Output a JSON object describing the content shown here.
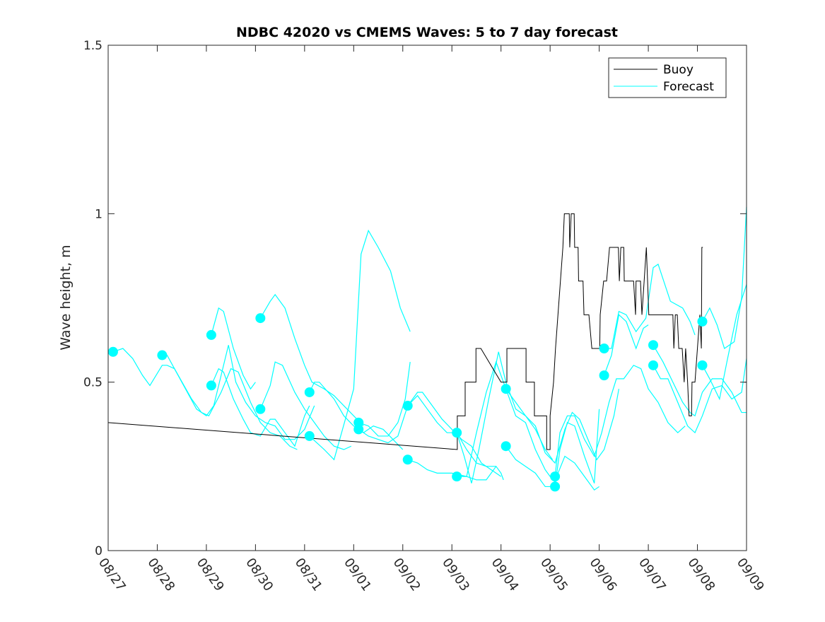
{
  "chart_data": {
    "type": "line",
    "title": "NDBC 42020 vs CMEMS Waves: 5 to 7 day forecast",
    "xlabel": "",
    "ylabel": "Wave height, m",
    "xlim": [
      0,
      13
    ],
    "ylim": [
      0,
      1.5
    ],
    "x_unit": "days since 08/27",
    "x_tick_labels": [
      "08/27",
      "08/28",
      "08/29",
      "08/30",
      "08/31",
      "09/01",
      "09/02",
      "09/03",
      "09/04",
      "09/05",
      "09/06",
      "09/07",
      "09/08",
      "09/09"
    ],
    "y_ticks": [
      0,
      0.5,
      1,
      1.5
    ],
    "y_tick_labels": [
      "0",
      "0.5",
      "1",
      "1.5"
    ],
    "grid": false,
    "legend": {
      "placement": "top-right",
      "entries": [
        "Buoy",
        "Forecast"
      ]
    },
    "colors": {
      "buoy": "#000000",
      "forecast": "#00ffff"
    },
    "buoy": [
      [
        [
          0,
          0.38
        ],
        [
          7.11,
          0.3
        ],
        [
          7.11,
          0.4
        ],
        [
          7.27,
          0.4
        ],
        [
          7.27,
          0.5
        ],
        [
          7.49,
          0.5
        ],
        [
          7.49,
          0.6
        ],
        [
          7.59,
          0.6
        ],
        [
          8.0,
          0.5
        ],
        [
          8.12,
          0.5
        ],
        [
          8.12,
          0.6
        ],
        [
          8.51,
          0.6
        ],
        [
          8.51,
          0.5
        ],
        [
          8.68,
          0.5
        ],
        [
          8.68,
          0.4
        ],
        [
          8.93,
          0.4
        ],
        [
          8.93,
          0.3
        ],
        [
          9.0,
          0.3
        ],
        [
          9.0,
          0.4
        ],
        [
          9.07,
          0.5
        ],
        [
          9.11,
          0.6
        ],
        [
          9.16,
          0.7
        ],
        [
          9.21,
          0.8
        ],
        [
          9.26,
          0.9
        ],
        [
          9.29,
          1.0
        ],
        [
          9.39,
          1.0
        ],
        [
          9.4,
          0.9
        ],
        [
          9.43,
          1.0
        ],
        [
          9.49,
          1.0
        ],
        [
          9.5,
          0.9
        ],
        [
          9.57,
          0.9
        ],
        [
          9.58,
          0.8
        ],
        [
          9.67,
          0.8
        ],
        [
          9.69,
          0.7
        ],
        [
          9.79,
          0.7
        ],
        [
          9.85,
          0.6
        ],
        [
          10.01,
          0.6
        ],
        [
          10.02,
          0.7
        ],
        [
          10.09,
          0.8
        ],
        [
          10.15,
          0.8
        ],
        [
          10.21,
          0.9
        ],
        [
          10.39,
          0.9
        ],
        [
          10.41,
          0.8
        ],
        [
          10.44,
          0.9
        ],
        [
          10.5,
          0.9
        ],
        [
          10.51,
          0.8
        ],
        [
          10.7,
          0.8
        ],
        [
          10.74,
          0.7
        ],
        [
          10.75,
          0.8
        ],
        [
          10.84,
          0.8
        ],
        [
          10.87,
          0.7
        ],
        [
          10.96,
          0.9
        ],
        [
          11.01,
          0.7
        ],
        [
          11.5,
          0.7
        ],
        [
          11.52,
          0.6
        ],
        [
          11.55,
          0.7
        ],
        [
          11.59,
          0.7
        ],
        [
          11.62,
          0.6
        ],
        [
          11.69,
          0.6
        ],
        [
          11.73,
          0.5
        ],
        [
          11.76,
          0.6
        ],
        [
          11.8,
          0.5
        ],
        [
          11.83,
          0.4
        ],
        [
          11.88,
          0.4
        ],
        [
          11.89,
          0.5
        ],
        [
          11.95,
          0.5
        ],
        [
          12.05,
          0.7
        ],
        [
          12.08,
          0.6
        ],
        [
          12.09,
          0.9
        ],
        [
          12.11,
          0.9
        ]
      ],
      [
        [
          12.95,
          0.5
        ],
        [
          13.0,
          0.5
        ]
      ]
    ],
    "forecast": [
      [
        [
          0.1,
          0.59
        ],
        [
          0.3,
          0.6
        ],
        [
          0.5,
          0.57
        ],
        [
          0.7,
          0.52
        ],
        [
          0.85,
          0.49
        ],
        [
          1.1,
          0.55
        ],
        [
          1.2,
          0.55
        ],
        [
          1.35,
          0.54
        ],
        [
          1.7,
          0.45
        ],
        [
          1.9,
          0.41
        ],
        [
          2.05,
          0.4
        ],
        [
          2.3,
          0.47
        ],
        [
          2.5,
          0.54
        ],
        [
          2.65,
          0.53
        ],
        [
          2.9,
          0.44
        ],
        [
          3.1,
          0.38
        ],
        [
          3.3,
          0.35
        ],
        [
          3.5,
          0.34
        ],
        [
          3.7,
          0.31
        ],
        [
          3.85,
          0.3
        ]
      ],
      [
        [
          1.1,
          0.58
        ],
        [
          1.2,
          0.58
        ],
        [
          1.5,
          0.5
        ],
        [
          1.8,
          0.42
        ],
        [
          2.0,
          0.4
        ],
        [
          2.15,
          0.43
        ],
        [
          2.3,
          0.52
        ],
        [
          2.45,
          0.61
        ],
        [
          2.6,
          0.5
        ],
        [
          2.8,
          0.44
        ],
        [
          3.0,
          0.4
        ],
        [
          3.2,
          0.38
        ],
        [
          3.4,
          0.37
        ],
        [
          3.6,
          0.33
        ],
        [
          3.8,
          0.33
        ],
        [
          4.0,
          0.36
        ],
        [
          4.2,
          0.43
        ]
      ],
      [
        [
          2.1,
          0.64
        ],
        [
          2.25,
          0.72
        ],
        [
          2.35,
          0.71
        ],
        [
          2.55,
          0.6
        ],
        [
          2.75,
          0.52
        ],
        [
          2.9,
          0.48
        ],
        [
          3.0,
          0.5
        ]
      ],
      [
        [
          2.1,
          0.49
        ],
        [
          2.25,
          0.54
        ],
        [
          2.35,
          0.53
        ],
        [
          2.55,
          0.45
        ],
        [
          2.75,
          0.39
        ],
        [
          2.9,
          0.35
        ],
        [
          3.1,
          0.34
        ],
        [
          3.3,
          0.39
        ],
        [
          3.4,
          0.39
        ],
        [
          3.6,
          0.35
        ],
        [
          3.8,
          0.31
        ],
        [
          4.0,
          0.4
        ],
        [
          4.1,
          0.43
        ]
      ],
      [
        [
          3.1,
          0.69
        ],
        [
          3.3,
          0.74
        ],
        [
          3.4,
          0.76
        ],
        [
          3.6,
          0.72
        ],
        [
          3.8,
          0.63
        ],
        [
          4.0,
          0.55
        ],
        [
          4.15,
          0.5
        ],
        [
          4.4,
          0.48
        ],
        [
          4.6,
          0.46
        ],
        [
          4.8,
          0.43
        ],
        [
          5.0,
          0.4
        ],
        [
          5.2,
          0.37
        ]
      ],
      [
        [
          4.1,
          0.47
        ],
        [
          4.2,
          0.5
        ],
        [
          4.3,
          0.5
        ],
        [
          4.6,
          0.45
        ],
        [
          4.8,
          0.4
        ],
        [
          5.0,
          0.37
        ],
        [
          5.2,
          0.35
        ],
        [
          5.4,
          0.37
        ],
        [
          5.6,
          0.36
        ],
        [
          5.8,
          0.33
        ],
        [
          6.0,
          0.3
        ]
      ],
      [
        [
          3.1,
          0.42
        ],
        [
          3.3,
          0.49
        ],
        [
          3.4,
          0.56
        ],
        [
          3.55,
          0.55
        ],
        [
          3.8,
          0.47
        ],
        [
          4.0,
          0.42
        ],
        [
          4.2,
          0.38
        ],
        [
          4.4,
          0.34
        ],
        [
          4.6,
          0.31
        ],
        [
          4.8,
          0.3
        ],
        [
          4.95,
          0.31
        ]
      ],
      [
        [
          4.1,
          0.34
        ],
        [
          4.4,
          0.3
        ],
        [
          4.6,
          0.27
        ],
        [
          4.85,
          0.4
        ],
        [
          5.0,
          0.48
        ],
        [
          5.15,
          0.88
        ],
        [
          5.3,
          0.95
        ],
        [
          5.5,
          0.9
        ],
        [
          5.75,
          0.83
        ],
        [
          5.95,
          0.72
        ],
        [
          6.15,
          0.65
        ]
      ],
      [
        [
          5.1,
          0.38
        ],
        [
          5.3,
          0.37
        ],
        [
          5.5,
          0.34
        ],
        [
          5.7,
          0.34
        ],
        [
          5.9,
          0.38
        ],
        [
          6.05,
          0.45
        ],
        [
          6.15,
          0.56
        ]
      ],
      [
        [
          5.1,
          0.36
        ],
        [
          5.3,
          0.34
        ],
        [
          5.5,
          0.33
        ],
        [
          5.7,
          0.32
        ],
        [
          5.9,
          0.34
        ],
        [
          6.1,
          0.43
        ],
        [
          6.3,
          0.47
        ],
        [
          6.4,
          0.47
        ],
        [
          6.6,
          0.43
        ],
        [
          6.8,
          0.39
        ],
        [
          7.0,
          0.36
        ],
        [
          7.2,
          0.33
        ],
        [
          7.4,
          0.31
        ],
        [
          7.6,
          0.26
        ],
        [
          7.8,
          0.24
        ],
        [
          8.0,
          0.22
        ]
      ],
      [
        [
          6.1,
          0.43
        ],
        [
          6.3,
          0.46
        ],
        [
          6.5,
          0.42
        ],
        [
          6.7,
          0.38
        ],
        [
          6.9,
          0.35
        ],
        [
          7.1,
          0.35
        ],
        [
          7.3,
          0.3
        ],
        [
          7.5,
          0.26
        ],
        [
          7.7,
          0.25
        ],
        [
          7.9,
          0.25
        ]
      ],
      [
        [
          6.1,
          0.27
        ],
        [
          6.3,
          0.26
        ],
        [
          6.5,
          0.24
        ],
        [
          6.7,
          0.23
        ],
        [
          7.0,
          0.23
        ],
        [
          7.3,
          0.22
        ],
        [
          7.5,
          0.21
        ],
        [
          7.7,
          0.21
        ],
        [
          7.9,
          0.25
        ],
        [
          8.0,
          0.23
        ],
        [
          8.05,
          0.21
        ]
      ],
      [
        [
          7.1,
          0.35
        ],
        [
          7.25,
          0.28
        ],
        [
          7.4,
          0.2
        ],
        [
          7.55,
          0.3
        ],
        [
          7.75,
          0.45
        ],
        [
          7.95,
          0.59
        ],
        [
          8.1,
          0.5
        ],
        [
          8.3,
          0.42
        ],
        [
          8.5,
          0.4
        ],
        [
          8.7,
          0.36
        ],
        [
          8.9,
          0.3
        ],
        [
          9.05,
          0.27
        ]
      ],
      [
        [
          7.1,
          0.22
        ],
        [
          7.3,
          0.22
        ],
        [
          7.5,
          0.35
        ],
        [
          7.7,
          0.47
        ],
        [
          7.9,
          0.56
        ],
        [
          8.1,
          0.48
        ],
        [
          8.3,
          0.4
        ],
        [
          8.5,
          0.38
        ],
        [
          8.7,
          0.3
        ],
        [
          8.9,
          0.24
        ],
        [
          9.05,
          0.21
        ]
      ],
      [
        [
          8.1,
          0.48
        ],
        [
          8.3,
          0.44
        ],
        [
          8.5,
          0.4
        ],
        [
          8.7,
          0.37
        ],
        [
          8.9,
          0.29
        ],
        [
          9.1,
          0.26
        ],
        [
          9.3,
          0.36
        ],
        [
          9.45,
          0.41
        ],
        [
          9.6,
          0.39
        ],
        [
          9.8,
          0.32
        ],
        [
          9.95,
          0.27
        ],
        [
          10.1,
          0.3
        ],
        [
          10.3,
          0.4
        ],
        [
          10.4,
          0.48
        ]
      ],
      [
        [
          8.1,
          0.31
        ],
        [
          8.3,
          0.27
        ],
        [
          8.5,
          0.25
        ],
        [
          8.7,
          0.23
        ],
        [
          8.9,
          0.19
        ],
        [
          9.05,
          0.19
        ],
        [
          9.3,
          0.28
        ],
        [
          9.5,
          0.26
        ],
        [
          9.7,
          0.22
        ],
        [
          9.9,
          0.18
        ],
        [
          10.0,
          0.19
        ]
      ],
      [
        [
          9.1,
          0.22
        ],
        [
          9.2,
          0.35
        ],
        [
          9.35,
          0.4
        ],
        [
          9.5,
          0.4
        ],
        [
          9.7,
          0.33
        ],
        [
          9.9,
          0.28
        ],
        [
          10.05,
          0.35
        ],
        [
          10.2,
          0.44
        ],
        [
          10.35,
          0.51
        ],
        [
          10.5,
          0.51
        ],
        [
          10.7,
          0.55
        ],
        [
          10.85,
          0.54
        ],
        [
          11.0,
          0.48
        ],
        [
          11.2,
          0.44
        ],
        [
          11.4,
          0.38
        ],
        [
          11.6,
          0.35
        ],
        [
          11.75,
          0.37
        ]
      ],
      [
        [
          9.1,
          0.19
        ],
        [
          9.2,
          0.3
        ],
        [
          9.35,
          0.38
        ],
        [
          9.5,
          0.37
        ],
        [
          9.7,
          0.28
        ],
        [
          9.9,
          0.2
        ],
        [
          10.0,
          0.42
        ]
      ],
      [
        [
          10.1,
          0.6
        ],
        [
          10.25,
          0.6
        ],
        [
          10.4,
          0.71
        ],
        [
          10.55,
          0.7
        ],
        [
          10.75,
          0.65
        ],
        [
          10.95,
          0.69
        ],
        [
          11.1,
          0.84
        ],
        [
          11.2,
          0.85
        ],
        [
          11.45,
          0.74
        ],
        [
          11.7,
          0.72
        ],
        [
          11.85,
          0.68
        ],
        [
          11.95,
          0.64
        ]
      ],
      [
        [
          10.1,
          0.52
        ],
        [
          10.25,
          0.58
        ],
        [
          10.4,
          0.7
        ],
        [
          10.55,
          0.68
        ],
        [
          10.75,
          0.6
        ],
        [
          10.9,
          0.66
        ],
        [
          11.0,
          0.67
        ]
      ],
      [
        [
          11.1,
          0.61
        ],
        [
          11.3,
          0.56
        ],
        [
          11.5,
          0.5
        ],
        [
          11.7,
          0.44
        ],
        [
          11.85,
          0.41
        ],
        [
          11.95,
          0.4
        ],
        [
          12.1,
          0.47
        ],
        [
          12.3,
          0.51
        ],
        [
          12.5,
          0.51
        ],
        [
          12.7,
          0.47
        ],
        [
          12.9,
          0.41
        ],
        [
          13.0,
          0.41
        ]
      ],
      [
        [
          11.1,
          0.55
        ],
        [
          11.25,
          0.51
        ],
        [
          11.4,
          0.51
        ],
        [
          11.6,
          0.44
        ],
        [
          11.8,
          0.37
        ],
        [
          11.95,
          0.35
        ],
        [
          12.1,
          0.4
        ],
        [
          12.3,
          0.48
        ],
        [
          12.5,
          0.49
        ],
        [
          12.7,
          0.45
        ],
        [
          12.9,
          0.47
        ],
        [
          13.0,
          0.57
        ]
      ],
      [
        [
          12.1,
          0.68
        ],
        [
          12.25,
          0.72
        ],
        [
          12.4,
          0.67
        ],
        [
          12.55,
          0.6
        ],
        [
          12.75,
          0.62
        ],
        [
          12.9,
          0.75
        ],
        [
          13.0,
          1.02
        ]
      ],
      [
        [
          12.1,
          0.55
        ],
        [
          12.25,
          0.51
        ],
        [
          12.45,
          0.45
        ],
        [
          12.6,
          0.56
        ],
        [
          12.8,
          0.7
        ],
        [
          13.0,
          0.79
        ]
      ]
    ]
  }
}
